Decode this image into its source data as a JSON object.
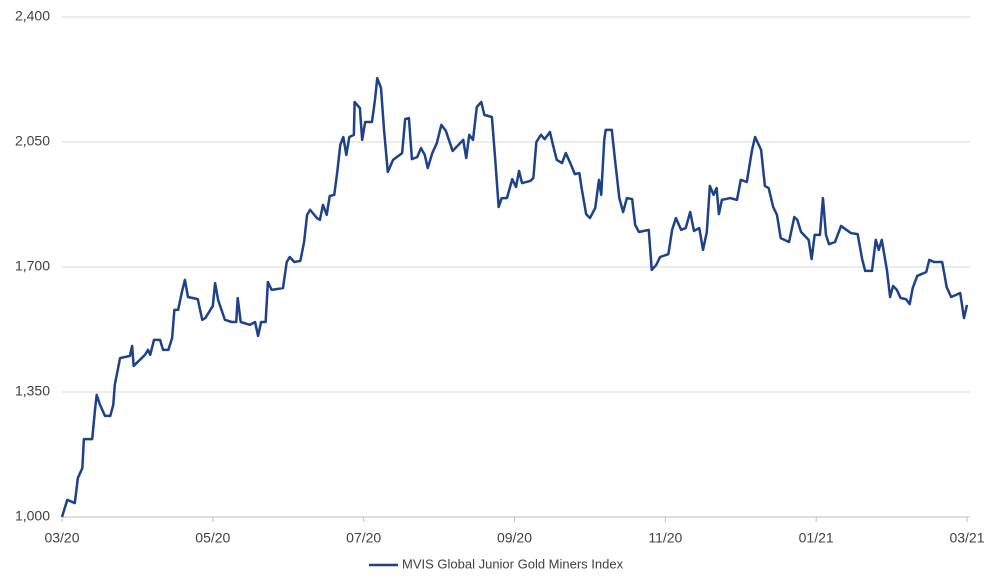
{
  "chart_data": {
    "type": "line",
    "xlim": [
      0,
      12
    ],
    "xticks": [
      {
        "value": 0,
        "label": "03/20"
      },
      {
        "value": 2,
        "label": "05/20"
      },
      {
        "value": 4,
        "label": "07/20"
      },
      {
        "value": 6,
        "label": "09/20"
      },
      {
        "value": 8,
        "label": "11/20"
      },
      {
        "value": 10,
        "label": "01/21"
      },
      {
        "value": 12,
        "label": "03/21"
      }
    ],
    "ylim": [
      1000,
      2400
    ],
    "yticks": [
      {
        "value": 1000,
        "label": "1,000"
      },
      {
        "value": 1350,
        "label": "1,350"
      },
      {
        "value": 1700,
        "label": "1,700"
      },
      {
        "value": 2050,
        "label": "2,050"
      },
      {
        "value": 2400,
        "label": "2,400"
      }
    ],
    "grid": true,
    "legend": "bottom",
    "x": [
      0,
      0.07,
      0.17,
      0.21,
      0.27,
      0.29,
      0.4,
      0.44,
      0.46,
      0.5,
      0.57,
      0.64,
      0.68,
      0.7,
      0.77,
      0.9,
      0.93,
      0.95,
      1.1,
      1.14,
      1.17,
      1.22,
      1.3,
      1.34,
      1.41,
      1.46,
      1.49,
      1.54,
      1.59,
      1.63,
      1.67,
      1.8,
      1.86,
      1.9,
      2.0,
      2.03,
      2.07,
      2.16,
      2.25,
      2.31,
      2.33,
      2.37,
      2.49,
      2.56,
      2.6,
      2.64,
      2.7,
      2.73,
      2.78,
      2.93,
      2.98,
      3.02,
      3.08,
      3.16,
      3.21,
      3.25,
      3.29,
      3.38,
      3.42,
      3.46,
      3.51,
      3.55,
      3.61,
      3.65,
      3.69,
      3.73,
      3.77,
      3.81,
      3.87,
      3.88,
      3.95,
      3.98,
      4.02,
      4.11,
      4.15,
      4.18,
      4.23,
      4.27,
      4.32,
      4.39,
      4.51,
      4.55,
      4.6,
      4.64,
      4.71,
      4.76,
      4.81,
      4.85,
      4.91,
      4.97,
      5.03,
      5.09,
      5.18,
      5.32,
      5.36,
      5.4,
      5.45,
      5.5,
      5.56,
      5.6,
      5.7,
      5.74,
      5.79,
      5.83,
      5.9,
      5.97,
      6.02,
      6.06,
      6.1,
      6.21,
      6.25,
      6.29,
      6.35,
      6.4,
      6.47,
      6.51,
      6.56,
      6.63,
      6.68,
      6.74,
      6.8,
      6.86,
      6.89,
      6.95,
      7.0,
      7.07,
      7.12,
      7.15,
      7.19,
      7.21,
      7.29,
      7.33,
      7.39,
      7.44,
      7.49,
      7.56,
      7.6,
      7.65,
      7.78,
      7.82,
      7.88,
      7.93,
      8.04,
      8.09,
      8.14,
      8.21,
      8.27,
      8.33,
      8.38,
      8.45,
      8.5,
      8.55,
      8.59,
      8.64,
      8.68,
      8.71,
      8.75,
      8.86,
      8.95,
      9.0,
      9.08,
      9.15,
      9.19,
      9.27,
      9.32,
      9.37,
      9.43,
      9.48,
      9.53,
      9.64,
      9.71,
      9.75,
      9.8,
      9.9,
      9.94,
      9.98,
      10.05,
      10.09,
      10.13,
      10.17,
      10.25,
      10.33,
      10.46,
      10.55,
      10.61,
      10.65,
      10.74,
      10.79,
      10.83,
      10.87,
      10.94,
      10.98,
      11.02,
      11.07,
      11.12,
      11.19,
      11.24,
      11.28,
      11.34,
      11.46,
      11.5,
      11.56,
      11.67,
      11.69,
      11.73,
      11.79,
      11.91,
      11.96,
      12.0
    ],
    "series": [
      {
        "name": "MVIS Global Junior Gold Miners Index",
        "color": "#1d4289",
        "values": [
          1000,
          1048,
          1039,
          1109,
          1137,
          1218,
          1218,
          1305,
          1342,
          1316,
          1283,
          1283,
          1314,
          1370,
          1445,
          1451,
          1479,
          1423,
          1454,
          1468,
          1454,
          1496,
          1496,
          1468,
          1468,
          1501,
          1580,
          1580,
          1630,
          1664,
          1616,
          1610,
          1552,
          1557,
          1591,
          1655,
          1608,
          1552,
          1546,
          1546,
          1613,
          1546,
          1538,
          1546,
          1507,
          1546,
          1546,
          1658,
          1636,
          1641,
          1714,
          1728,
          1714,
          1717,
          1770,
          1846,
          1860,
          1837,
          1832,
          1874,
          1846,
          1899,
          1902,
          1966,
          2042,
          2064,
          2014,
          2064,
          2070,
          2162,
          2145,
          2056,
          2106,
          2106,
          2168,
          2229,
          2201,
          2084,
          1966,
          2000,
          2019,
          2114,
          2117,
          2002,
          2008,
          2033,
          2014,
          1977,
          2019,
          2047,
          2098,
          2081,
          2025,
          2056,
          2005,
          2070,
          2056,
          2148,
          2162,
          2126,
          2120,
          2014,
          1868,
          1893,
          1893,
          1946,
          1924,
          1969,
          1935,
          1941,
          1949,
          2050,
          2070,
          2058,
          2078,
          2042,
          2000,
          1991,
          2019,
          1991,
          1960,
          1963,
          1921,
          1848,
          1837,
          1865,
          1944,
          1902,
          2056,
          2084,
          2084,
          2005,
          1893,
          1854,
          1893,
          1890,
          1818,
          1798,
          1804,
          1692,
          1706,
          1728,
          1736,
          1804,
          1837,
          1804,
          1809,
          1854,
          1801,
          1809,
          1748,
          1798,
          1927,
          1902,
          1921,
          1848,
          1888,
          1893,
          1888,
          1944,
          1938,
          2028,
          2064,
          2028,
          1927,
          1921,
          1868,
          1846,
          1781,
          1770,
          1840,
          1832,
          1798,
          1776,
          1722,
          1790,
          1790,
          1893,
          1790,
          1764,
          1770,
          1815,
          1795,
          1792,
          1722,
          1689,
          1689,
          1776,
          1748,
          1776,
          1689,
          1616,
          1647,
          1636,
          1613,
          1610,
          1596,
          1641,
          1675,
          1686,
          1720,
          1714,
          1714,
          1692,
          1644,
          1616,
          1627,
          1557,
          1594
        ]
      }
    ]
  }
}
